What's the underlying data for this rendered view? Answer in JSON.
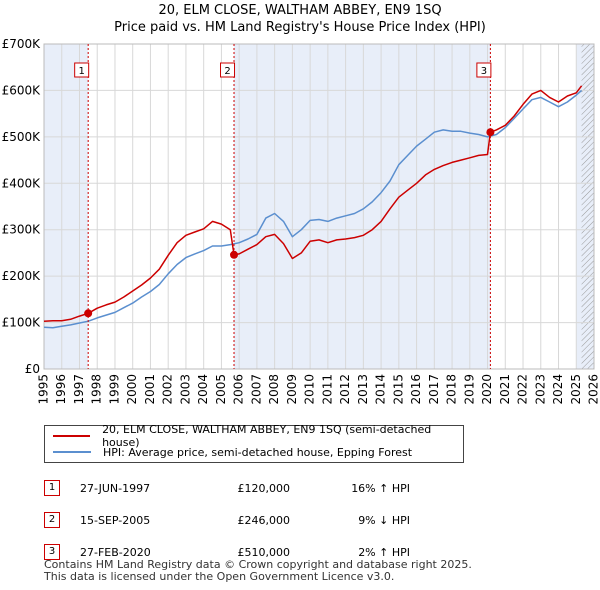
{
  "title": "20, ELM CLOSE, WALTHAM ABBEY, EN9 1SQ",
  "subtitle": "Price paid vs. HM Land Registry's House Price Index (HPI)",
  "chart_data": {
    "type": "line",
    "xlim": [
      1995,
      2026
    ],
    "ylim": [
      0,
      700000
    ],
    "y_ticks": [
      0,
      100000,
      200000,
      300000,
      400000,
      500000,
      600000,
      700000
    ],
    "y_tick_labels": [
      "£0",
      "£100K",
      "£200K",
      "£300K",
      "£400K",
      "£500K",
      "£600K",
      "£700K"
    ],
    "x_ticks": [
      1995,
      1996,
      1997,
      1998,
      1999,
      2000,
      2001,
      2002,
      2003,
      2004,
      2005,
      2006,
      2007,
      2008,
      2009,
      2010,
      2011,
      2012,
      2013,
      2014,
      2015,
      2016,
      2017,
      2018,
      2019,
      2020,
      2021,
      2022,
      2023,
      2024,
      2025,
      2026
    ],
    "shaded_spans": [
      [
        1995.0,
        1997.49
      ],
      [
        2005.71,
        2020.16
      ],
      [
        2025.0,
        2026.0
      ]
    ],
    "hatched_span": [
      2025.3,
      2026.0
    ],
    "series": [
      {
        "name": "20, ELM CLOSE, WALTHAM ABBEY, EN9 1SQ (semi-detached house)",
        "color": "#cc0000",
        "x": [
          1995.0,
          1995.5,
          1996.0,
          1996.5,
          1997.0,
          1997.49,
          1998.0,
          1998.5,
          1999.0,
          1999.5,
          2000.0,
          2000.5,
          2001.0,
          2001.5,
          2002.0,
          2002.5,
          2003.0,
          2003.5,
          2004.0,
          2004.5,
          2005.0,
          2005.5,
          2005.71,
          2006.0,
          2006.5,
          2007.0,
          2007.5,
          2008.0,
          2008.5,
          2009.0,
          2009.5,
          2010.0,
          2010.5,
          2011.0,
          2011.5,
          2012.0,
          2012.5,
          2013.0,
          2013.5,
          2014.0,
          2014.5,
          2015.0,
          2015.5,
          2016.0,
          2016.5,
          2017.0,
          2017.5,
          2018.0,
          2018.5,
          2019.0,
          2019.5,
          2020.0,
          2020.16,
          2020.5,
          2021.0,
          2021.5,
          2022.0,
          2022.5,
          2023.0,
          2023.5,
          2024.0,
          2024.5,
          2025.0,
          2025.3
        ],
        "y": [
          103000,
          104000,
          104000,
          107000,
          114000,
          120000,
          131000,
          138000,
          144000,
          155000,
          168000,
          181000,
          196000,
          215000,
          245000,
          272000,
          288000,
          295000,
          302000,
          318000,
          312000,
          300000,
          246000,
          248000,
          258000,
          268000,
          285000,
          290000,
          270000,
          238000,
          250000,
          275000,
          278000,
          272000,
          278000,
          280000,
          283000,
          288000,
          300000,
          318000,
          345000,
          370000,
          385000,
          400000,
          418000,
          430000,
          438000,
          445000,
          450000,
          455000,
          460000,
          462000,
          510000,
          515000,
          525000,
          545000,
          570000,
          592000,
          600000,
          585000,
          575000,
          588000,
          595000,
          610000
        ]
      },
      {
        "name": "HPI: Average price, semi-detached house, Epping Forest",
        "color": "#5b8fcf",
        "x": [
          1995.0,
          1995.5,
          1996.0,
          1996.5,
          1997.0,
          1997.5,
          1998.0,
          1998.5,
          1999.0,
          1999.5,
          2000.0,
          2000.5,
          2001.0,
          2001.5,
          2002.0,
          2002.5,
          2003.0,
          2003.5,
          2004.0,
          2004.5,
          2005.0,
          2005.5,
          2006.0,
          2006.5,
          2007.0,
          2007.5,
          2008.0,
          2008.5,
          2009.0,
          2009.5,
          2010.0,
          2010.5,
          2011.0,
          2011.5,
          2012.0,
          2012.5,
          2013.0,
          2013.5,
          2014.0,
          2014.5,
          2015.0,
          2015.5,
          2016.0,
          2016.5,
          2017.0,
          2017.5,
          2018.0,
          2018.5,
          2019.0,
          2019.5,
          2020.0,
          2020.5,
          2021.0,
          2021.5,
          2022.0,
          2022.5,
          2023.0,
          2023.5,
          2024.0,
          2024.5,
          2025.0,
          2025.3
        ],
        "y": [
          90000,
          89000,
          92000,
          95000,
          99000,
          103000,
          110000,
          116000,
          122000,
          132000,
          142000,
          155000,
          167000,
          182000,
          205000,
          225000,
          240000,
          248000,
          255000,
          265000,
          265000,
          268000,
          272000,
          280000,
          290000,
          325000,
          335000,
          318000,
          285000,
          300000,
          320000,
          322000,
          318000,
          325000,
          330000,
          335000,
          345000,
          360000,
          380000,
          405000,
          440000,
          460000,
          480000,
          495000,
          510000,
          515000,
          512000,
          512000,
          508000,
          505000,
          500000,
          505000,
          520000,
          540000,
          560000,
          580000,
          585000,
          575000,
          565000,
          575000,
          590000,
          600000
        ]
      }
    ],
    "sales": [
      {
        "label": "1",
        "x": 1997.49,
        "price": 120000,
        "date": "27-JUN-1997",
        "price_text": "£120,000",
        "hpi": "16% ↑ HPI"
      },
      {
        "label": "2",
        "x": 2005.71,
        "price": 246000,
        "date": "15-SEP-2005",
        "price_text": "£246,000",
        "hpi": "9% ↓ HPI"
      },
      {
        "label": "3",
        "x": 2020.16,
        "price": 510000,
        "date": "27-FEB-2020",
        "price_text": "£510,000",
        "hpi": "2% ↑ HPI"
      }
    ]
  },
  "legend": {
    "property_label": "20, ELM CLOSE, WALTHAM ABBEY, EN9 1SQ (semi-detached house)",
    "hpi_label": "HPI: Average price, semi-detached house, Epping Forest"
  },
  "colors": {
    "property": "#cc0000",
    "hpi": "#5b8fcf",
    "shade": "#e8eef9",
    "grid": "#d8d8d8"
  },
  "footer": {
    "line1": "Contains HM Land Registry data © Crown copyright and database right 2025.",
    "line2": "This data is licensed under the Open Government Licence v3.0."
  }
}
